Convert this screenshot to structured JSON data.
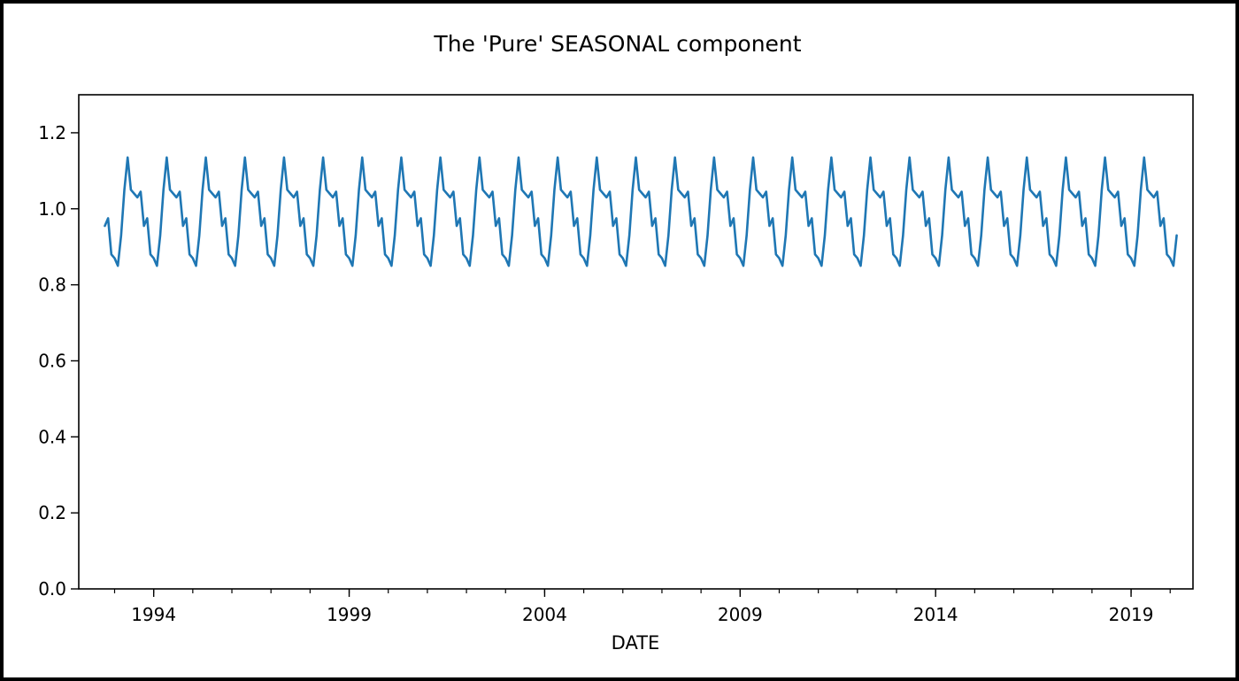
{
  "chart_data": {
    "type": "line",
    "title": "The 'Pure' SEASONAL component",
    "xlabel": "DATE",
    "ylabel": "",
    "xlim": [
      "1992-02",
      "2020-08"
    ],
    "ylim": [
      0.0,
      1.3
    ],
    "grid": false,
    "legend": "none",
    "line_color": "#1f77b4",
    "x_ticks": [
      {
        "label": "1994",
        "value": "1994-01"
      },
      {
        "label": "1999",
        "value": "1999-01"
      },
      {
        "label": "2004",
        "value": "2004-01"
      },
      {
        "label": "2009",
        "value": "2009-01"
      },
      {
        "label": "2014",
        "value": "2014-01"
      },
      {
        "label": "2019",
        "value": "2019-01"
      }
    ],
    "y_ticks": [
      {
        "label": "0.0",
        "value": 0.0
      },
      {
        "label": "0.2",
        "value": 0.2
      },
      {
        "label": "0.4",
        "value": 0.4
      },
      {
        "label": "0.6",
        "value": 0.6
      },
      {
        "label": "0.8",
        "value": 0.8
      },
      {
        "label": "1.0",
        "value": 1.0
      },
      {
        "label": "1.2",
        "value": 1.2
      }
    ],
    "series": [
      {
        "start": "1992-10",
        "end": "2020-03",
        "monthly_pattern": [
          {
            "month": "Jan",
            "value": 0.87
          },
          {
            "month": "Feb",
            "value": 0.85
          },
          {
            "month": "Mar",
            "value": 0.93
          },
          {
            "month": "Apr",
            "value": 1.05
          },
          {
            "month": "May",
            "value": 1.135
          },
          {
            "month": "Jun",
            "value": 1.05
          },
          {
            "month": "Jul",
            "value": 1.04
          },
          {
            "month": "Aug",
            "value": 1.03
          },
          {
            "month": "Sep",
            "value": 1.045
          },
          {
            "month": "Oct",
            "value": 0.955
          },
          {
            "month": "Nov",
            "value": 0.975
          },
          {
            "month": "Dec",
            "value": 0.88
          }
        ]
      }
    ]
  }
}
